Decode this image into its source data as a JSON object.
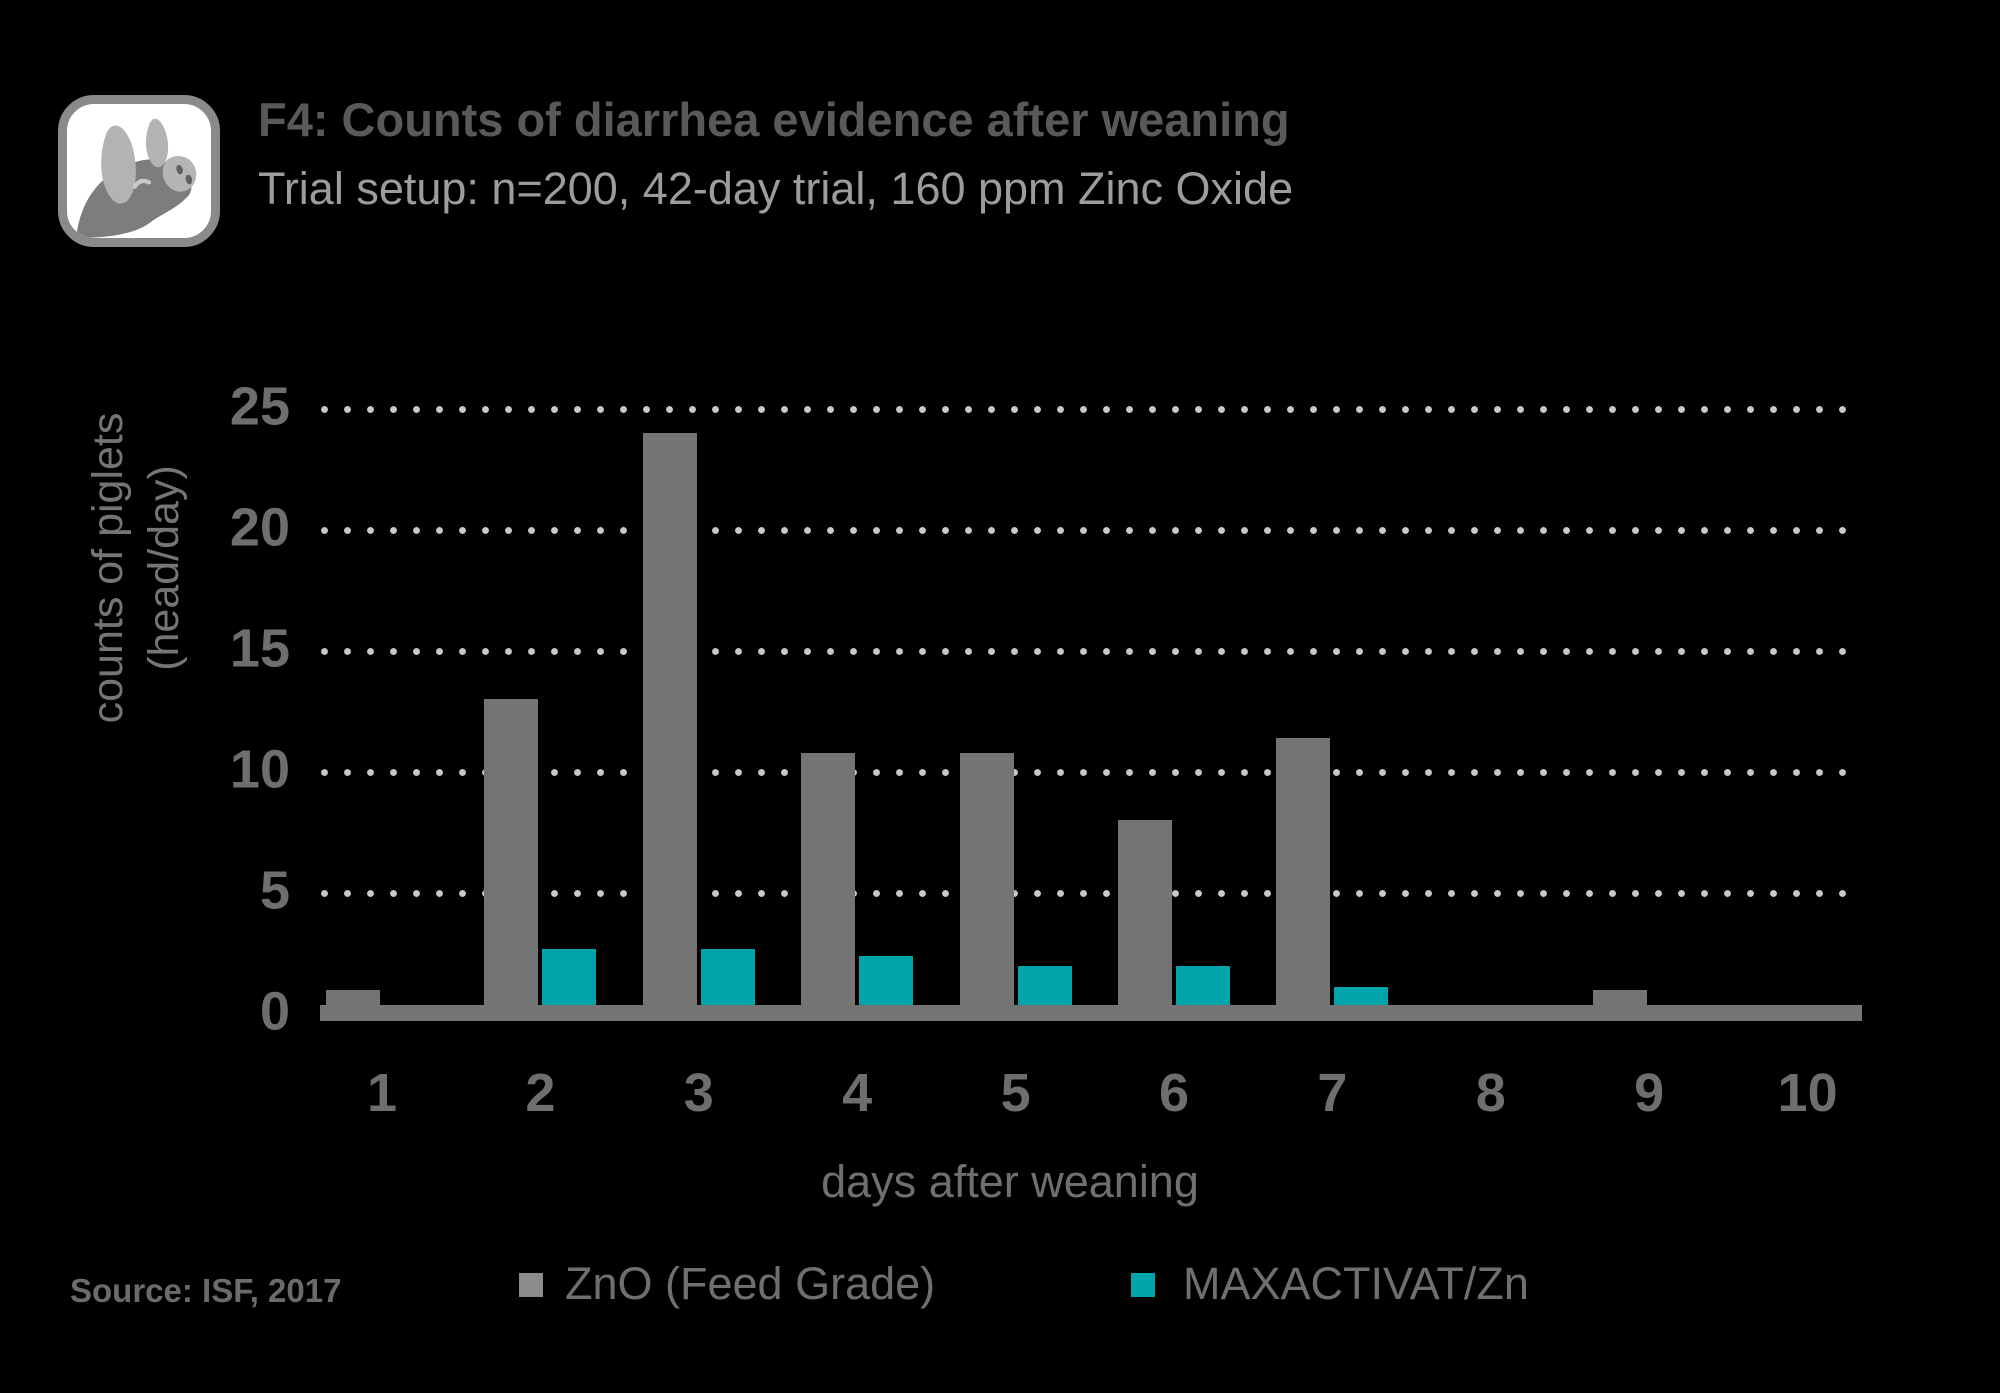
{
  "header": {
    "title": "F4: Counts of diarrhea evidence after weaning",
    "subtitle": "Trial setup: n=200, 42-day trial, 160 ppm Zinc Oxide",
    "logo": "pig-icon"
  },
  "chart_data": {
    "type": "bar",
    "categories": [
      "1",
      "2",
      "3",
      "4",
      "5",
      "6",
      "7",
      "8",
      "9",
      "10"
    ],
    "series": [
      {
        "name": "ZnO (Feed Grade)",
        "color": "#747474",
        "values": [
          1,
          13,
          24,
          10.8,
          10.8,
          8,
          11.4,
          0,
          1,
          0
        ]
      },
      {
        "name": "MAXACTIVAT/Zn",
        "color": "#00a5ac",
        "values": [
          0,
          2.7,
          2.7,
          2.4,
          2,
          2,
          1.1,
          0,
          0,
          0
        ]
      }
    ],
    "title": "F4: Counts of diarrhea evidence after weaning",
    "xlabel": "days after weaning",
    "ylabel_line1": "counts of piglets",
    "ylabel_line2": "(head/day)",
    "yticks": [
      0,
      5,
      10,
      15,
      20,
      25
    ],
    "ylim": [
      0,
      25
    ],
    "grid": "dotted-horizontal",
    "legend_position": "bottom"
  },
  "footer": {
    "source": "Source: ISF, 2017"
  },
  "colors": {
    "background": "#000000",
    "bar_gray": "#747474",
    "bar_teal": "#00a5ac",
    "grid_dot": "#c8c8c8",
    "title_text": "#595959",
    "subtitle_text": "#9c9c9c",
    "tick_text": "#6e6e6e",
    "legend_gray_swatch": "#8c8c8c"
  }
}
